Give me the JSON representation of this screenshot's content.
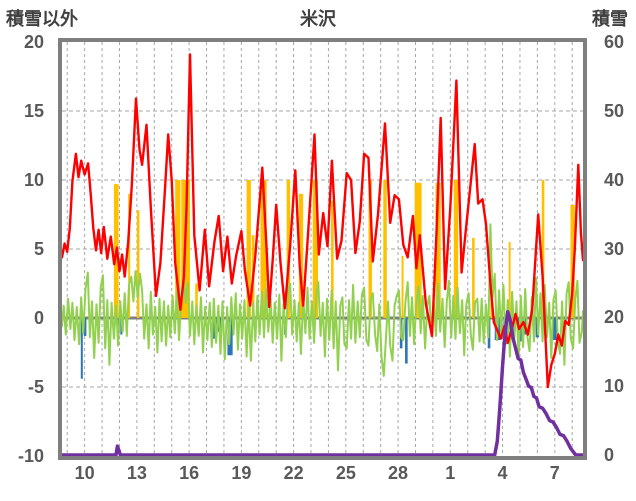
{
  "chart_data": {
    "type": "line",
    "title": "米沢",
    "left_axis": {
      "label": "積雪以外",
      "min": -10,
      "max": 20,
      "ticks": [
        20,
        15,
        10,
        5,
        0,
        -5,
        -10
      ]
    },
    "right_axis": {
      "label": "積雪",
      "min": 0,
      "max": 60,
      "ticks": [
        60,
        50,
        40,
        30,
        20,
        10,
        0
      ]
    },
    "x_axis": {
      "domain_min": 8.7,
      "domain_max": 38.62,
      "grid_day_start": 9,
      "grid_day_end": 38,
      "tick_days": [
        10,
        13,
        16,
        19,
        22,
        25,
        28,
        31,
        34,
        37
      ],
      "tick_labels": [
        "10",
        "13",
        "16",
        "19",
        "22",
        "25",
        "28",
        "1",
        "4",
        "7"
      ]
    },
    "grid": {
      "color": "#A6A6A6",
      "zero_line_color": "#808080",
      "border_color": "#7F7F7F"
    },
    "series": [
      {
        "name": "orange-bars",
        "type": "bar",
        "axis": "left",
        "color": "#FFC000",
        "bars": [
          [
            11.68,
            11.95,
            9.7
          ],
          [
            12.5,
            12.6,
            9.0
          ],
          [
            13.0,
            13.15,
            7.8
          ],
          [
            15.2,
            15.5,
            10
          ],
          [
            15.55,
            16.05,
            10
          ],
          [
            16.35,
            16.5,
            2.5
          ],
          [
            19.3,
            19.55,
            10
          ],
          [
            19.6,
            19.75,
            6.0
          ],
          [
            20.1,
            20.45,
            10
          ],
          [
            21.6,
            21.8,
            10
          ],
          [
            22.3,
            22.55,
            9.0
          ],
          [
            23.1,
            23.4,
            10
          ],
          [
            24.15,
            24.3,
            8.5
          ],
          [
            26.3,
            26.5,
            10
          ],
          [
            27.15,
            27.35,
            10
          ],
          [
            28.2,
            28.3,
            4.5
          ],
          [
            28.95,
            29.35,
            9.8
          ],
          [
            30.15,
            30.45,
            9.8
          ],
          [
            31.2,
            31.45,
            10
          ],
          [
            32.25,
            32.4,
            5.8
          ],
          [
            33.3,
            33.4,
            3.5
          ],
          [
            34.35,
            34.45,
            5.5
          ],
          [
            36.25,
            36.4,
            10
          ],
          [
            37.9,
            38.15,
            8.2
          ]
        ]
      },
      {
        "name": "blue-bars",
        "type": "bar",
        "axis": "left",
        "color": "#2E75B6",
        "bars": [
          [
            9.78,
            9.88,
            -4.4
          ],
          [
            9.95,
            10.1,
            -1.3
          ],
          [
            11.9,
            12.0,
            -0.7
          ],
          [
            12.05,
            12.15,
            -1.2
          ],
          [
            17.35,
            17.6,
            -1.5
          ],
          [
            17.65,
            17.9,
            -1.0
          ],
          [
            18.2,
            18.5,
            -2.7
          ],
          [
            21.45,
            21.6,
            -1.2
          ],
          [
            28.1,
            28.25,
            -2.2
          ],
          [
            28.4,
            28.55,
            -3.3
          ],
          [
            33.15,
            33.3,
            -2.2
          ],
          [
            33.55,
            33.85,
            -1.6
          ],
          [
            34.05,
            34.3,
            -1.9
          ],
          [
            34.85,
            35.1,
            -1.7
          ],
          [
            35.15,
            35.35,
            -1.2
          ],
          [
            35.9,
            36.1,
            -1.4
          ],
          [
            36.9,
            37.1,
            -1.6
          ]
        ]
      },
      {
        "name": "green-line",
        "type": "line",
        "axis": "left",
        "color": "#92D050",
        "width": 2,
        "points": [
          8.7,
          -0.6,
          8.8,
          0.9,
          8.92,
          -1.2,
          9.05,
          1.4,
          9.18,
          -0.8,
          9.3,
          1.1,
          9.42,
          -1.6,
          9.55,
          0.8,
          9.68,
          -1.9,
          9.8,
          1.5,
          9.92,
          -1.1,
          10.05,
          2.1,
          10.18,
          3.3,
          10.3,
          -1.4,
          10.42,
          1.2,
          10.55,
          -2.9,
          10.68,
          1.0,
          10.8,
          -1.8,
          10.92,
          2.2,
          11.05,
          3.1,
          11.18,
          -2.2,
          11.3,
          1.3,
          11.42,
          -3.4,
          11.55,
          1.1,
          11.68,
          -1.5,
          11.8,
          0.9,
          11.92,
          -2.0,
          12.05,
          1.2,
          12.18,
          -1.0,
          12.3,
          1.8,
          12.42,
          -1.3,
          12.55,
          2.4,
          12.68,
          3.0,
          12.8,
          1.2,
          12.92,
          3.4,
          13.05,
          1.5,
          13.18,
          3.2,
          13.3,
          2.0,
          13.42,
          -1.5,
          13.55,
          1.0,
          13.68,
          -2.2,
          13.8,
          1.9,
          13.92,
          -1.2,
          14.05,
          0.8,
          14.18,
          -2.5,
          14.3,
          1.4,
          14.42,
          -1.7,
          14.55,
          1.2,
          14.68,
          -2.0,
          14.8,
          0.9,
          14.92,
          -1.4,
          15.05,
          1.6,
          15.18,
          -1.1,
          15.3,
          2.0,
          15.42,
          -1.6,
          15.55,
          1.3,
          15.68,
          2.9,
          15.8,
          1.1,
          15.92,
          2.6,
          16.05,
          -1.3,
          16.18,
          1.2,
          16.3,
          -1.9,
          16.42,
          0.9,
          16.55,
          -1.3,
          16.68,
          1.5,
          16.8,
          -2.5,
          16.92,
          0.8,
          17.05,
          -1.6,
          17.18,
          1.1,
          17.3,
          -2.1,
          17.42,
          1.4,
          17.55,
          -1.8,
          17.68,
          0.9,
          17.8,
          -2.6,
          17.92,
          1.2,
          18.05,
          -3.0,
          18.18,
          0.8,
          18.3,
          -1.9,
          18.42,
          1.5,
          18.55,
          -1.2,
          18.68,
          1.8,
          18.8,
          -2.3,
          18.92,
          1.0,
          19.05,
          -1.5,
          19.18,
          1.3,
          19.3,
          -2.8,
          19.42,
          0.9,
          19.55,
          -3.1,
          19.68,
          1.1,
          19.8,
          -1.7,
          19.92,
          1.6,
          20.05,
          -1.2,
          20.18,
          1.9,
          20.3,
          -1.4,
          20.42,
          2.1,
          20.55,
          -1.0,
          20.68,
          1.4,
          20.8,
          -1.8,
          20.92,
          1.1,
          21.05,
          -1.5,
          21.18,
          1.7,
          21.3,
          -3.1,
          21.42,
          1.0,
          21.55,
          -1.4,
          21.68,
          1.9,
          21.8,
          2.5,
          21.92,
          -1.2,
          22.05,
          1.3,
          22.18,
          -1.7,
          22.3,
          1.1,
          22.42,
          -2.6,
          22.55,
          1.4,
          22.68,
          -1.1,
          22.8,
          2.2,
          22.92,
          -1.5,
          23.05,
          1.2,
          23.18,
          -1.8,
          23.3,
          1.6,
          23.42,
          2.6,
          23.55,
          -1.3,
          23.68,
          1.1,
          23.8,
          -2.8,
          23.92,
          1.4,
          24.05,
          -1.6,
          24.18,
          2.0,
          24.3,
          -2.2,
          24.42,
          1.2,
          24.55,
          -3.8,
          24.68,
          0.9,
          24.8,
          1.5,
          24.92,
          -1.9,
          25.05,
          -2.2,
          25.18,
          1.3,
          25.3,
          -1.5,
          25.42,
          2.4,
          25.55,
          -1.8,
          25.68,
          1.2,
          25.8,
          -1.4,
          25.92,
          1.7,
          26.05,
          2.2,
          26.18,
          -1.6,
          26.3,
          -2.0,
          26.42,
          1.3,
          26.55,
          1.8,
          26.68,
          -1.2,
          26.8,
          -2.4,
          26.92,
          1.0,
          27.05,
          -2.8,
          27.18,
          -4.2,
          27.3,
          -1.5,
          27.42,
          1.2,
          27.55,
          -2.0,
          27.68,
          -3.1,
          27.8,
          0.9,
          27.92,
          1.6,
          28.05,
          2.0,
          28.18,
          -1.4,
          28.3,
          -1.6,
          28.42,
          1.1,
          28.55,
          2.6,
          28.68,
          -1.3,
          28.8,
          1.5,
          28.92,
          -1.9,
          29.05,
          1.2,
          29.18,
          2.3,
          29.3,
          -1.1,
          29.42,
          1.6,
          29.55,
          -2.2,
          29.68,
          0.9,
          29.8,
          1.6,
          29.92,
          -1.3,
          30.05,
          1.1,
          30.18,
          -1.3,
          30.3,
          2.5,
          30.42,
          -1.0,
          30.55,
          1.4,
          30.68,
          -2.1,
          30.8,
          1.2,
          30.92,
          2.7,
          31.05,
          -1.4,
          31.18,
          1.6,
          31.3,
          -1.5,
          31.42,
          2.2,
          31.55,
          -1.1,
          31.68,
          1.3,
          31.8,
          -2.7,
          31.92,
          1.0,
          32.05,
          1.8,
          32.18,
          -1.3,
          32.3,
          -2.3,
          32.42,
          1.1,
          32.55,
          1.4,
          32.68,
          -1.7,
          32.8,
          1.4,
          32.92,
          -1.8,
          33.05,
          1.0,
          33.18,
          -1.4,
          33.3,
          6.8,
          33.42,
          1.5,
          33.55,
          3.2,
          33.68,
          -1.6,
          33.8,
          2.0,
          33.92,
          -1.2,
          34.05,
          2.4,
          34.18,
          -1.8,
          34.3,
          1.3,
          34.42,
          -2.8,
          34.55,
          1.9,
          34.68,
          -1.5,
          34.8,
          1.2,
          34.92,
          -3.0,
          35.05,
          1.6,
          35.18,
          -2.1,
          35.3,
          2.1,
          35.42,
          -1.3,
          35.55,
          -2.4,
          35.68,
          1.5,
          35.8,
          -1.7,
          35.92,
          2.9,
          36.05,
          -1.2,
          36.18,
          1.8,
          36.3,
          -1.7,
          36.42,
          2.4,
          36.55,
          -1.4,
          36.68,
          1.1,
          36.8,
          -2.9,
          36.92,
          1.3,
          37.05,
          2.0,
          37.18,
          -1.6,
          37.3,
          -2.6,
          37.42,
          1.2,
          37.55,
          -3.4,
          37.68,
          1.8,
          37.8,
          2.6,
          37.92,
          -1.5,
          38.05,
          -2.2,
          38.18,
          1.4,
          38.3,
          2.7,
          38.42,
          -1.8,
          38.55,
          -1.0,
          38.62,
          0.5
        ]
      },
      {
        "name": "red-line",
        "type": "line",
        "axis": "left",
        "color": "#FF0000",
        "width": 2.4,
        "points": [
          8.7,
          4.4,
          8.85,
          5.4,
          9.0,
          4.8,
          9.15,
          6.5,
          9.3,
          9.9,
          9.5,
          11.9,
          9.65,
          10.2,
          9.8,
          11.4,
          10.0,
          10.4,
          10.2,
          11.2,
          10.35,
          9.0,
          10.5,
          6.5,
          10.65,
          4.9,
          10.8,
          6.4,
          10.95,
          4.7,
          11.1,
          6.6,
          11.3,
          4.3,
          11.5,
          5.9,
          11.7,
          3.9,
          11.85,
          5.1,
          12.0,
          3.4,
          12.15,
          4.6,
          12.3,
          3.0,
          12.5,
          5.5,
          12.7,
          9.5,
          12.95,
          15.9,
          13.15,
          12.2,
          13.3,
          11.1,
          13.55,
          14.0,
          13.8,
          8.0,
          14.1,
          1.6,
          14.35,
          4.0,
          14.6,
          9.0,
          14.8,
          13.3,
          15.0,
          10.0,
          15.2,
          4.0,
          15.5,
          0.6,
          15.7,
          3.0,
          15.85,
          8.0,
          16.05,
          19.1,
          16.3,
          6.0,
          16.6,
          2.0,
          16.9,
          6.4,
          17.15,
          2.3,
          17.45,
          5.5,
          17.7,
          7.4,
          17.95,
          3.4,
          18.2,
          5.9,
          18.45,
          2.5,
          18.7,
          4.5,
          19.0,
          6.3,
          19.2,
          3.5,
          19.5,
          0.9,
          19.8,
          4.5,
          20.2,
          10.9,
          20.45,
          5.0,
          20.6,
          0.8,
          20.8,
          4.2,
          21.0,
          8.2,
          21.25,
          4.0,
          21.5,
          0.7,
          21.8,
          5.2,
          22.1,
          10.7,
          22.35,
          3.8,
          22.55,
          0.9,
          22.8,
          5.5,
          23.2,
          13.3,
          23.45,
          4.6,
          23.7,
          7.6,
          23.95,
          5.2,
          24.2,
          11.4,
          24.5,
          4.3,
          24.75,
          5.6,
          25.05,
          10.5,
          25.3,
          10.0,
          25.55,
          4.7,
          25.8,
          7.0,
          26.05,
          11.9,
          26.3,
          11.6,
          26.55,
          4.1,
          26.85,
          7.5,
          27.25,
          14.1,
          27.55,
          6.9,
          27.8,
          8.9,
          28.05,
          8.6,
          28.3,
          5.3,
          28.55,
          4.4,
          28.85,
          7.4,
          29.05,
          3.6,
          29.25,
          6.0,
          29.6,
          1.0,
          29.95,
          -1.3,
          30.2,
          6.0,
          30.45,
          14.5,
          30.7,
          2.1,
          31.0,
          8.0,
          31.35,
          17.2,
          31.65,
          3.3,
          31.9,
          6.5,
          32.15,
          9.5,
          32.4,
          12.6,
          32.6,
          8.3,
          32.85,
          8.6,
          33.05,
          6.8,
          33.3,
          2.5,
          33.5,
          -0.3,
          33.7,
          -0.9,
          33.9,
          -1.5,
          34.1,
          -0.6,
          34.3,
          -1.8,
          34.55,
          -0.7,
          34.75,
          0.3,
          34.95,
          -0.8,
          35.2,
          -0.3,
          35.45,
          -1.2,
          35.7,
          0.6,
          36.05,
          7.5,
          36.3,
          3.0,
          36.6,
          -5.0,
          36.8,
          -3.4,
          37.0,
          -2.6,
          37.2,
          -1.2,
          37.4,
          -2.0,
          37.6,
          -0.2,
          37.8,
          -0.5,
          38.0,
          1.8,
          38.15,
          5.0,
          38.35,
          11.1,
          38.5,
          6.2,
          38.62,
          4.2
        ]
      },
      {
        "name": "purple-line",
        "type": "line",
        "axis": "right",
        "color": "#7030A0",
        "width": 3.5,
        "points": [
          8.7,
          0,
          11.8,
          0,
          11.88,
          1.3,
          11.98,
          0.6,
          12.05,
          0,
          33.55,
          0,
          33.7,
          2,
          33.85,
          7,
          34.0,
          13,
          34.15,
          18,
          34.3,
          20.8,
          34.45,
          19.5,
          34.6,
          17,
          34.75,
          15.5,
          34.9,
          14,
          35.05,
          13.8,
          35.2,
          12,
          35.35,
          11,
          35.5,
          10,
          35.65,
          9.8,
          35.8,
          8.5,
          35.95,
          8.3,
          36.1,
          7,
          36.3,
          6.8,
          36.5,
          6,
          36.7,
          5,
          36.9,
          4.8,
          37.1,
          4,
          37.3,
          3,
          37.5,
          2.8,
          37.7,
          2,
          37.9,
          1,
          38.05,
          0.5,
          38.2,
          0,
          38.62,
          0
        ]
      }
    ]
  }
}
